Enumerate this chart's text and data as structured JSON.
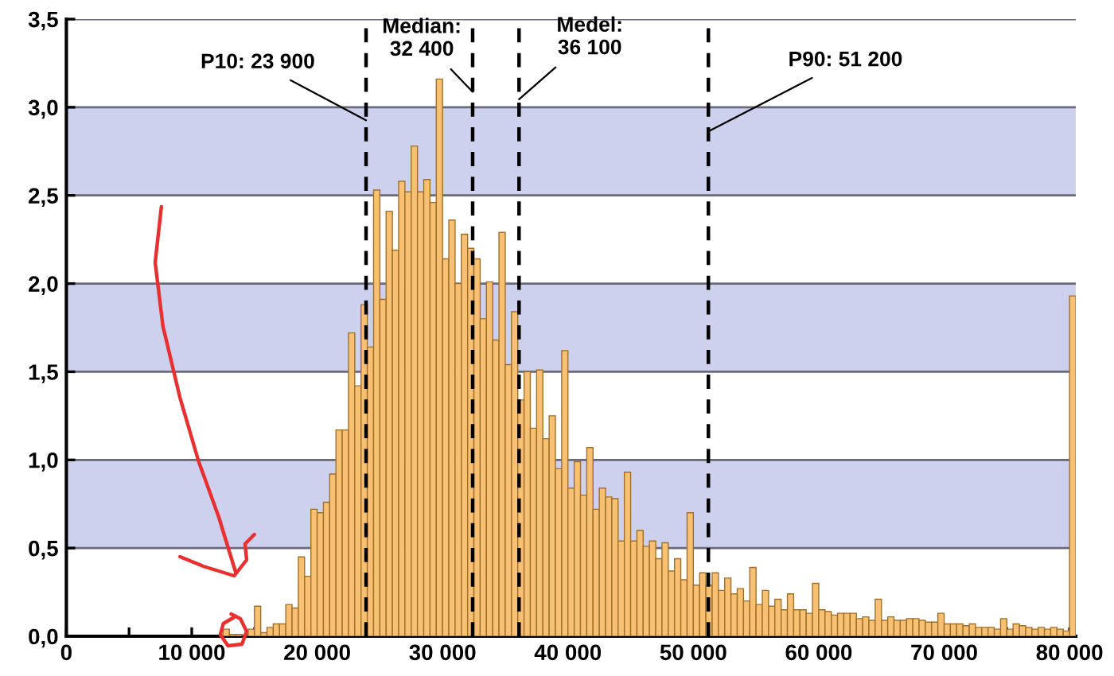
{
  "chart_data": {
    "type": "histogram",
    "bins": [
      12500,
      13000,
      13500,
      14000,
      14500,
      15000,
      15500,
      16000,
      16500,
      17000,
      17500,
      18000,
      18500,
      19000,
      19500,
      20000,
      20500,
      21000,
      21500,
      22000,
      22500,
      23000,
      23500,
      24000,
      24500,
      25000,
      25500,
      26000,
      26500,
      27000,
      27500,
      28000,
      28500,
      29000,
      29500,
      30000,
      30500,
      31000,
      31500,
      32000,
      32500,
      33000,
      33500,
      34000,
      34500,
      35000,
      35500,
      36000,
      36500,
      37000,
      37500,
      38000,
      38500,
      39000,
      39500,
      40000,
      40500,
      41000,
      41500,
      42000,
      42500,
      43000,
      43500,
      44000,
      44500,
      45000,
      45500,
      46000,
      46500,
      47000,
      47500,
      48000,
      48500,
      49000,
      49500,
      50000,
      50500,
      51000,
      51500,
      52000,
      52500,
      53000,
      53500,
      54000,
      54500,
      55000,
      55500,
      56000,
      56500,
      57000,
      57500,
      58000,
      58500,
      59000,
      59500,
      60000,
      60500,
      61000,
      61500,
      62000,
      62500,
      63000,
      63500,
      64000,
      64500,
      65000,
      65500,
      66000,
      66500,
      67000,
      67500,
      68000,
      68500,
      69000,
      69500,
      70000,
      70500,
      71000,
      71500,
      72000,
      72500,
      73000,
      73500,
      74000,
      74500,
      75000,
      75500,
      76000,
      76500,
      77000,
      77500,
      78000,
      78500,
      79000,
      79500,
      80000,
      80500
    ],
    "values": [
      0.04,
      0.01,
      0.01,
      null,
      0.04,
      0.17,
      0.02,
      0.05,
      0.07,
      0.07,
      0.18,
      0.16,
      0.45,
      0.34,
      0.72,
      0.7,
      0.76,
      0.92,
      1.17,
      1.17,
      1.72,
      1.42,
      1.88,
      1.64,
      2.53,
      1.91,
      2.41,
      2.19,
      2.58,
      2.52,
      2.78,
      2.52,
      2.59,
      2.46,
      3.16,
      2.14,
      2.36,
      2.0,
      2.28,
      2.2,
      2.14,
      1.8,
      2.01,
      1.68,
      2.29,
      1.54,
      1.84,
      1.34,
      1.5,
      1.18,
      1.51,
      1.12,
      1.25,
      0.95,
      1.62,
      0.84,
      0.99,
      0.8,
      1.07,
      0.72,
      0.84,
      0.79,
      0.78,
      0.54,
      0.93,
      0.54,
      0.6,
      0.51,
      0.54,
      0.44,
      0.53,
      0.37,
      0.44,
      0.32,
      0.7,
      0.29,
      0.36,
      0.29,
      0.36,
      0.26,
      0.33,
      0.24,
      0.27,
      0.2,
      0.39,
      0.18,
      0.26,
      0.17,
      0.21,
      0.15,
      0.24,
      0.15,
      0.15,
      0.13,
      0.3,
      0.15,
      0.14,
      0.12,
      0.13,
      0.13,
      0.13,
      0.1,
      0.11,
      0.09,
      0.21,
      0.09,
      0.11,
      0.09,
      0.09,
      0.1,
      0.1,
      0.09,
      0.08,
      0.08,
      0.13,
      0.07,
      0.07,
      0.07,
      0.06,
      0.07,
      0.05,
      0.05,
      0.05,
      0.04,
      0.1,
      0.04,
      0.07,
      0.06,
      0.05,
      0.04,
      0.05,
      0.04,
      0.05,
      0.04,
      0.03,
      1.93
    ],
    "color": "#f8c072",
    "xlim": [
      0,
      80500
    ],
    "xticks": [
      {
        "value": 0,
        "label": "0"
      },
      {
        "value": 5000,
        "label": null
      },
      {
        "value": 10000,
        "label": "10 000"
      },
      {
        "value": 15000,
        "label": null
      },
      {
        "value": 20000,
        "label": "20 000"
      },
      {
        "value": 25000,
        "label": null
      },
      {
        "value": 30000,
        "label": "30 000"
      },
      {
        "value": 35000,
        "label": null
      },
      {
        "value": 40000,
        "label": "40 000"
      },
      {
        "value": 45000,
        "label": null
      },
      {
        "value": 50000,
        "label": "50 000"
      },
      {
        "value": 55000,
        "label": null
      },
      {
        "value": 60000,
        "label": "60 000"
      },
      {
        "value": 65000,
        "label": null
      },
      {
        "value": 70000,
        "label": "70 000"
      },
      {
        "value": 75000,
        "label": null
      },
      {
        "value": 80000,
        "label": "80 000"
      }
    ],
    "ylim": [
      0,
      3.5
    ],
    "yticks": [
      {
        "value": 0,
        "label": "0,0"
      },
      {
        "value": 0.5,
        "label": "0,5"
      },
      {
        "value": 1,
        "label": "1,0"
      },
      {
        "value": 1.5,
        "label": "1,5"
      },
      {
        "value": 2,
        "label": "2,0"
      },
      {
        "value": 2.5,
        "label": "2,5"
      },
      {
        "value": 3,
        "label": "3,0"
      },
      {
        "value": 3.5,
        "label": "3,5"
      }
    ],
    "grid": "y",
    "bands": [
      {
        "axis": "y",
        "from": 0.5,
        "to": 1.0,
        "label": null,
        "color": "#cdd1ee"
      },
      {
        "axis": "y",
        "from": 1.5,
        "to": 2.0,
        "label": null,
        "color": "#cdd1ee"
      },
      {
        "axis": "y",
        "from": 2.5,
        "to": 3.0,
        "label": null,
        "color": "#cdd1ee"
      }
    ],
    "ref_lines": [
      {
        "axis": "x",
        "value": 23900,
        "label": "P10: 23 900",
        "color": "#000000",
        "line_style": "dashed"
      },
      {
        "axis": "x",
        "value": 32400,
        "label": "Median:\n32 400",
        "color": "#000000",
        "line_style": "dashed"
      },
      {
        "axis": "x",
        "value": 36100,
        "label": "Medel:\n36 100",
        "color": "#000000",
        "line_style": "dashed"
      },
      {
        "axis": "x",
        "value": 51200,
        "label": "P90: 51 200",
        "color": "#000000",
        "line_style": "dashed"
      }
    ]
  }
}
